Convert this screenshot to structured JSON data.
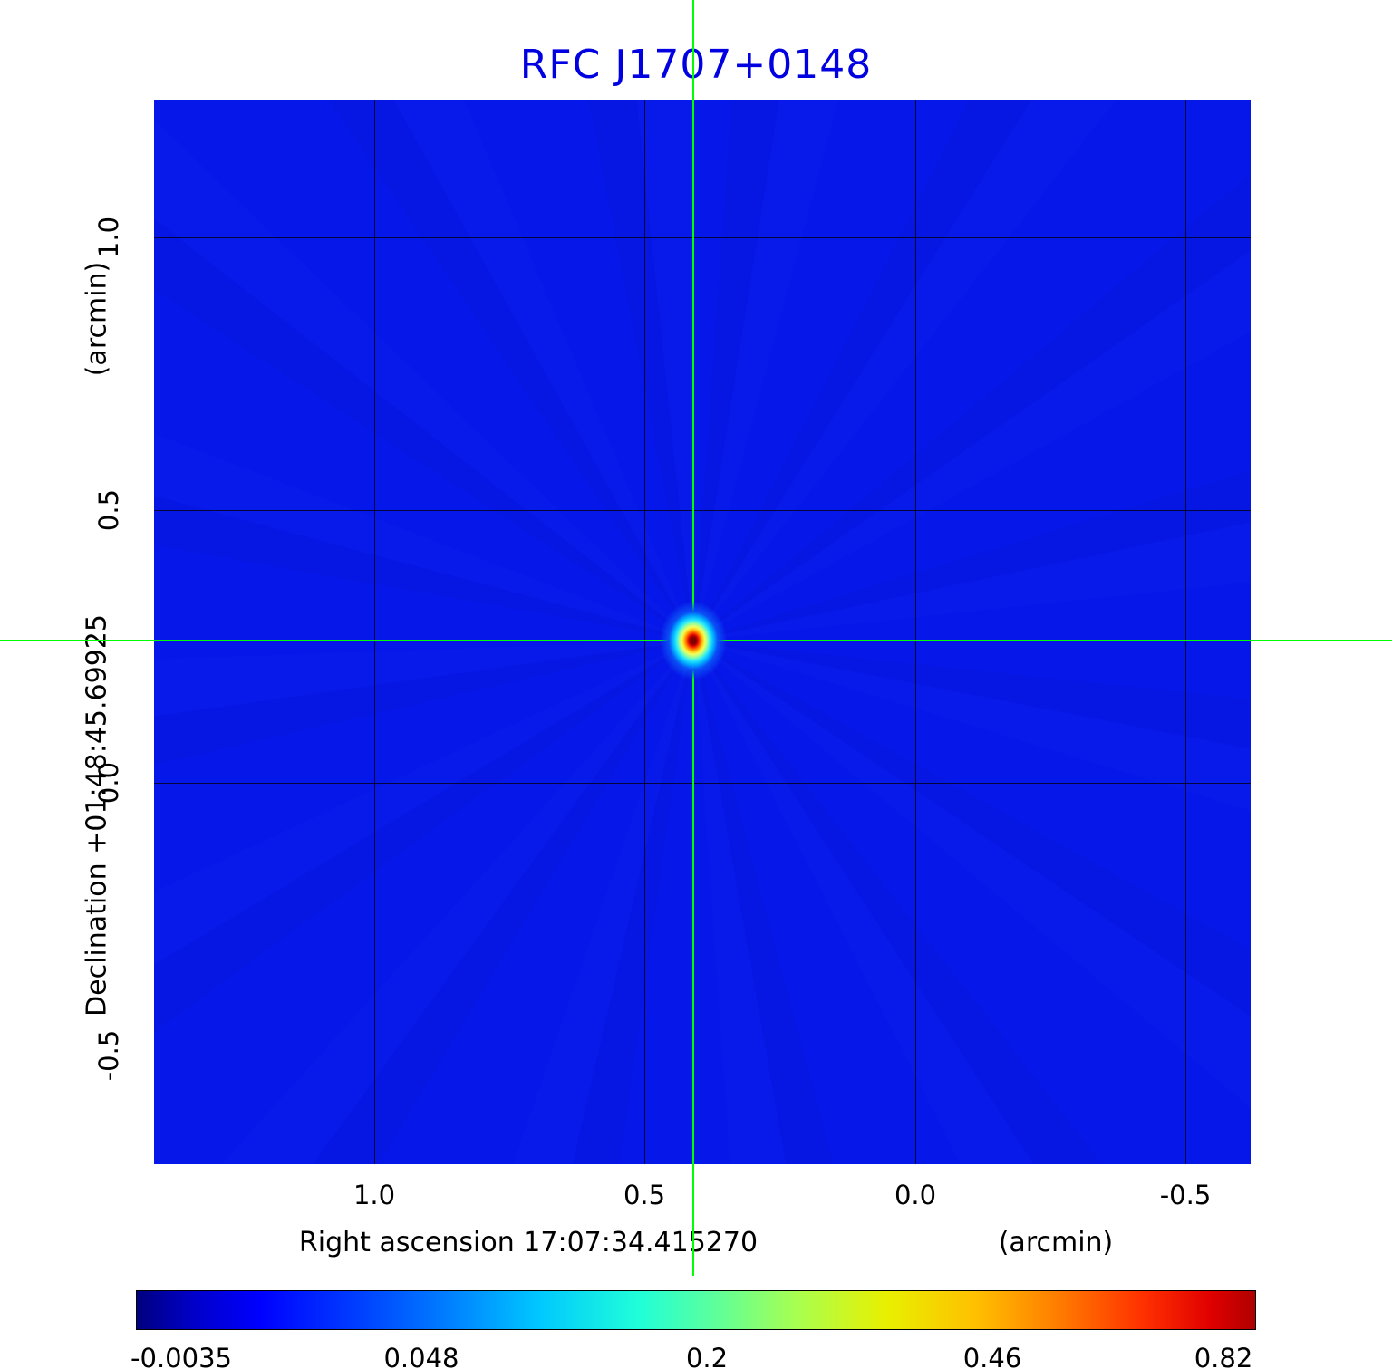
{
  "title": "RFC J1707+0148",
  "axes": {
    "x_label": "Right ascension  17:07:34.415270",
    "x_unit": "(arcmin)",
    "y_label": "Declination  +01:48:45.69925",
    "y_unit": "(arcmin)",
    "x_ticks": [
      "1.0",
      "0.5",
      "0.0",
      "-0.5"
    ],
    "y_ticks": [
      "1.0",
      "0.5",
      "0.0",
      "-0.5"
    ]
  },
  "colorbar": {
    "colormap": "jet",
    "ticks": [
      "-0.0035",
      "0.048",
      "0.2",
      "0.46",
      "0.82"
    ]
  },
  "colors": {
    "title": "#0000e0",
    "map_background": "#0617e9",
    "crosshair": "#00ff00"
  },
  "chart_data": {
    "type": "heatmap",
    "title": "RFC J1707+0148",
    "xlabel": "Right ascension 17:07:34.415270 (arcmin)",
    "ylabel": "Declination +01:48:45.69925 (arcmin)",
    "x_ticks": [
      1.0,
      0.5,
      0.0,
      -0.5
    ],
    "y_ticks": [
      1.0,
      0.5,
      0.0,
      -0.5
    ],
    "x_range": [
      1.41,
      -0.62
    ],
    "y_range": [
      -0.7,
      1.25
    ],
    "grid": true,
    "colormap": "jet",
    "colorbar_ticks": [
      -0.0035,
      0.048,
      0.2,
      0.46,
      0.82
    ],
    "value_min": -0.0035,
    "value_max": 0.82,
    "source": {
      "ra_offset_arcmin": 0.41,
      "dec_offset_arcmin": 0.26,
      "peak_value": 0.82,
      "marked_by_crosshair": true
    }
  }
}
